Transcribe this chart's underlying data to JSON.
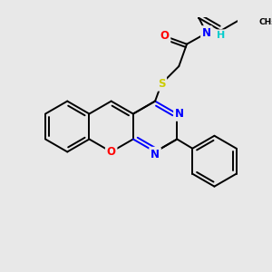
{
  "background_color": "#e8e8e8",
  "bond_color": "#000000",
  "atom_colors": {
    "N": "#0000ff",
    "O": "#ff0000",
    "S": "#cccc00",
    "H": "#00cccc",
    "C": "#000000",
    "Me": "#000000"
  },
  "line_width": 1.4,
  "figsize": [
    3.0,
    3.0
  ],
  "dpi": 100
}
